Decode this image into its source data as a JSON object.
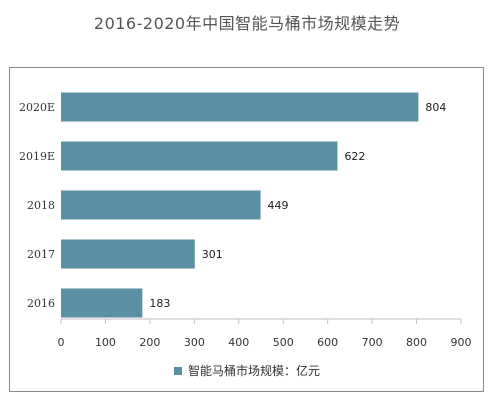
{
  "chart_data": {
    "type": "bar",
    "orientation": "horizontal",
    "title": "2016-2020年中国智能马桶市场规模走势",
    "categories": [
      "2020E",
      "2019E",
      "2018",
      "2017",
      "2016"
    ],
    "series": [
      {
        "name": "智能马桶市场规模：亿元",
        "values": [
          804,
          622,
          449,
          301,
          183
        ],
        "color": "#5b8fa3"
      }
    ],
    "xlim": [
      0,
      900
    ],
    "xticks": [
      0,
      100,
      200,
      300,
      400,
      500,
      600,
      700,
      800,
      900
    ],
    "grid": false,
    "legend_position": "bottom"
  }
}
